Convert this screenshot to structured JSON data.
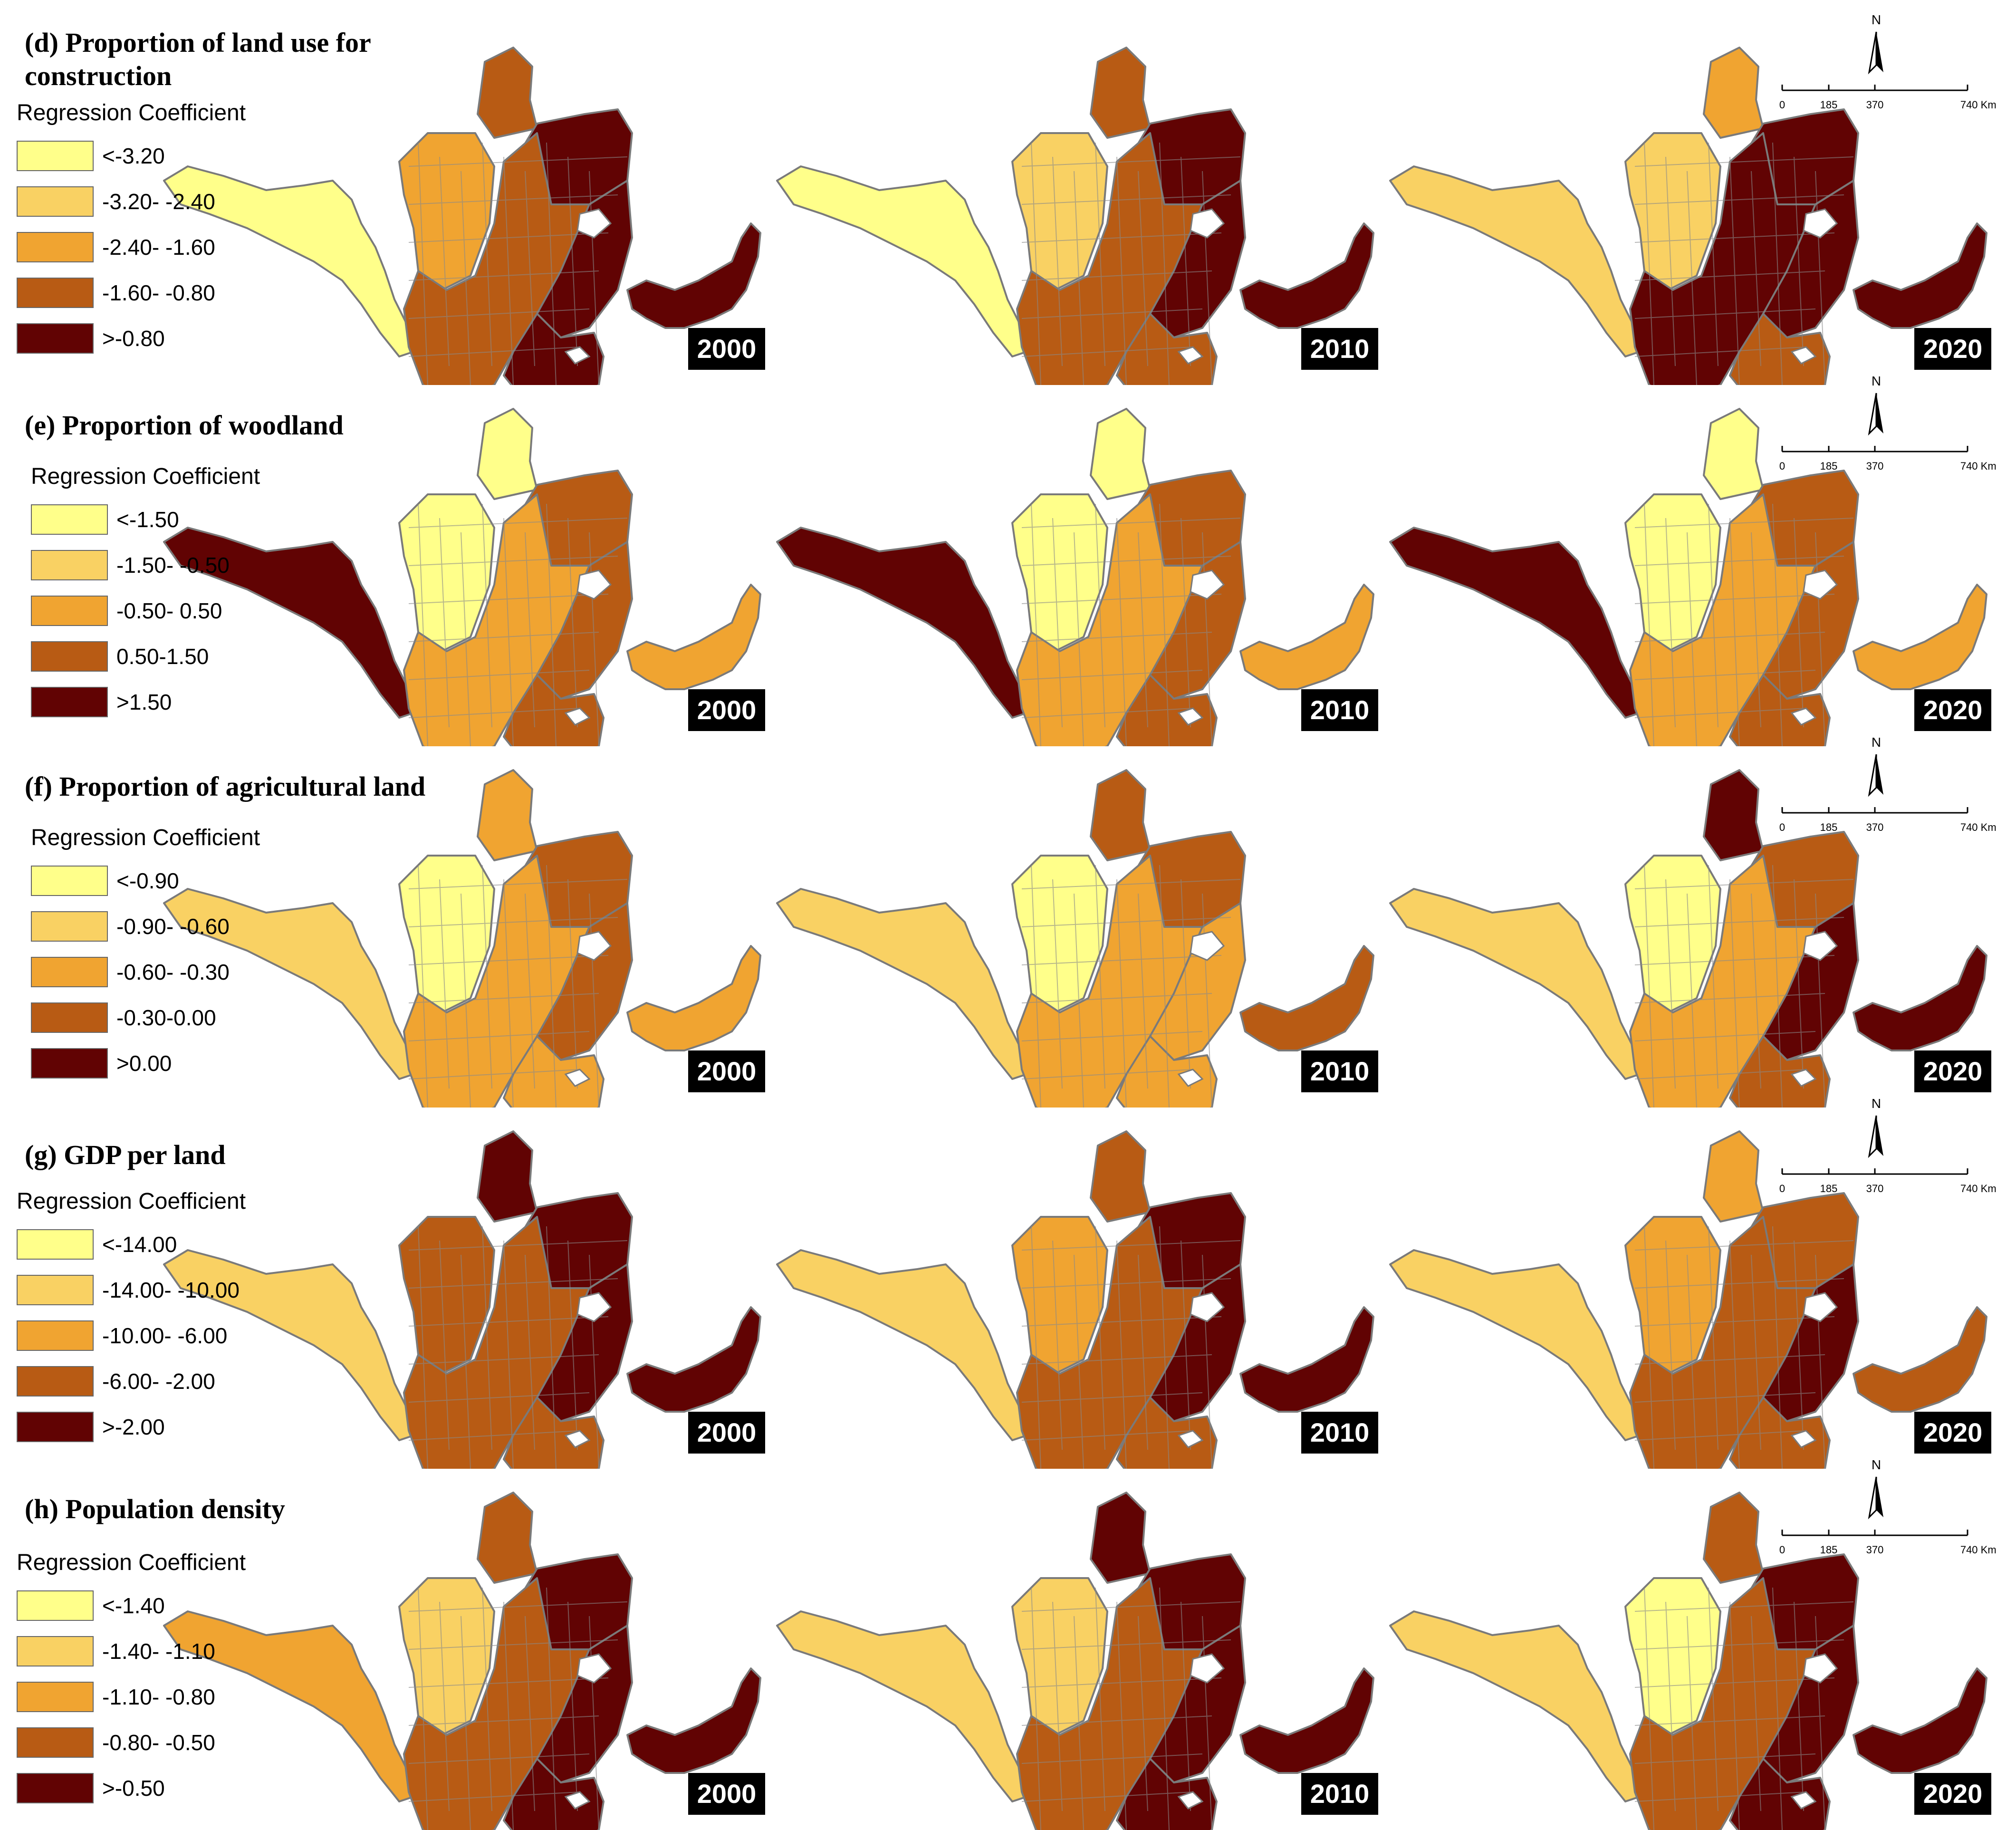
{
  "legend_heading": "Regression Coefficient",
  "colors": [
    "#ffff8a",
    "#f9d163",
    "#f0a431",
    "#b85b14",
    "#610303"
  ],
  "scale": {
    "ticks": [
      "0",
      "185",
      "370",
      "740 Km"
    ],
    "north": "N"
  },
  "panels": [
    {
      "title": "(d) Proportion of land use for\nconstruction",
      "classes": [
        "<-3.20",
        "-3.20- -2.40",
        "-2.40- -1.60",
        "-1.60- -0.80",
        ">-0.80"
      ],
      "maps": [
        {
          "year": "2000",
          "dominant": 3,
          "regions": {
            "west": 0,
            "central_west": 2,
            "north": 3,
            "north_east": 4,
            "central": 3,
            "east": 4,
            "south": 4,
            "arm": 4
          }
        },
        {
          "year": "2010",
          "dominant": 3,
          "regions": {
            "west": 0,
            "central_west": 1,
            "north": 3,
            "north_east": 4,
            "central": 3,
            "east": 4,
            "south": 3,
            "arm": 4
          }
        },
        {
          "year": "2020",
          "dominant": 3,
          "regions": {
            "west": 1,
            "central_west": 1,
            "north": 2,
            "north_east": 4,
            "central": 4,
            "east": 4,
            "south": 3,
            "arm": 4
          }
        }
      ]
    },
    {
      "title": "(e)  Proportion of woodland",
      "classes": [
        "<-1.50",
        "-1.50- -0.50",
        "-0.50- 0.50",
        "0.50-1.50",
        ">1.50"
      ],
      "maps": [
        {
          "year": "2000",
          "dominant": 2,
          "regions": {
            "west": 4,
            "central_west": 0,
            "north": 0,
            "north_east": 3,
            "central": 2,
            "east": 3,
            "south": 3,
            "arm": 2
          }
        },
        {
          "year": "2010",
          "dominant": 2,
          "regions": {
            "west": 4,
            "central_west": 0,
            "north": 0,
            "north_east": 3,
            "central": 2,
            "east": 3,
            "south": 3,
            "arm": 2
          }
        },
        {
          "year": "2020",
          "dominant": 2,
          "regions": {
            "west": 4,
            "central_west": 0,
            "north": 0,
            "north_east": 3,
            "central": 2,
            "east": 3,
            "south": 3,
            "arm": 2
          }
        }
      ]
    },
    {
      "title": "(f) Proportion of agricultural land",
      "classes": [
        "<-0.90",
        "-0.90- -0.60",
        "-0.60- -0.30",
        "-0.30-0.00",
        ">0.00"
      ],
      "maps": [
        {
          "year": "2000",
          "dominant": 2,
          "regions": {
            "west": 1,
            "central_west": 0,
            "north": 2,
            "north_east": 3,
            "central": 2,
            "east": 3,
            "south": 2,
            "arm": 2
          }
        },
        {
          "year": "2010",
          "dominant": 2,
          "regions": {
            "west": 1,
            "central_west": 0,
            "north": 3,
            "north_east": 3,
            "central": 2,
            "east": 2,
            "south": 2,
            "arm": 3
          }
        },
        {
          "year": "2020",
          "dominant": 2,
          "regions": {
            "west": 1,
            "central_west": 0,
            "north": 4,
            "north_east": 3,
            "central": 2,
            "east": 4,
            "south": 3,
            "arm": 4
          }
        }
      ]
    },
    {
      "title": "(g) GDP per land",
      "classes": [
        "<-14.00",
        "-14.00- -10.00",
        "-10.00- -6.00",
        "-6.00- -2.00",
        ">-2.00"
      ],
      "maps": [
        {
          "year": "2000",
          "dominant": 3,
          "regions": {
            "west": 1,
            "central_west": 3,
            "north": 4,
            "north_east": 4,
            "central": 3,
            "east": 4,
            "south": 3,
            "arm": 4
          }
        },
        {
          "year": "2010",
          "dominant": 3,
          "regions": {
            "west": 1,
            "central_west": 2,
            "north": 3,
            "north_east": 4,
            "central": 3,
            "east": 4,
            "south": 3,
            "arm": 4
          }
        },
        {
          "year": "2020",
          "dominant": 3,
          "regions": {
            "west": 1,
            "central_west": 2,
            "north": 2,
            "north_east": 3,
            "central": 3,
            "east": 4,
            "south": 3,
            "arm": 3
          }
        }
      ]
    },
    {
      "title": "(h) Population density",
      "classes": [
        "<-1.40",
        "-1.40- -1.10",
        "-1.10- -0.80",
        "-0.80- -0.50",
        ">-0.50"
      ],
      "maps": [
        {
          "year": "2000",
          "dominant": 3,
          "regions": {
            "west": 2,
            "central_west": 1,
            "north": 3,
            "north_east": 4,
            "central": 3,
            "east": 4,
            "south": 4,
            "arm": 4
          }
        },
        {
          "year": "2010",
          "dominant": 3,
          "regions": {
            "west": 1,
            "central_west": 1,
            "north": 4,
            "north_east": 4,
            "central": 3,
            "east": 4,
            "south": 4,
            "arm": 4
          }
        },
        {
          "year": "2020",
          "dominant": 3,
          "regions": {
            "west": 1,
            "central_west": 0,
            "north": 3,
            "north_east": 4,
            "central": 3,
            "east": 4,
            "south": 4,
            "arm": 4
          }
        }
      ]
    }
  ]
}
